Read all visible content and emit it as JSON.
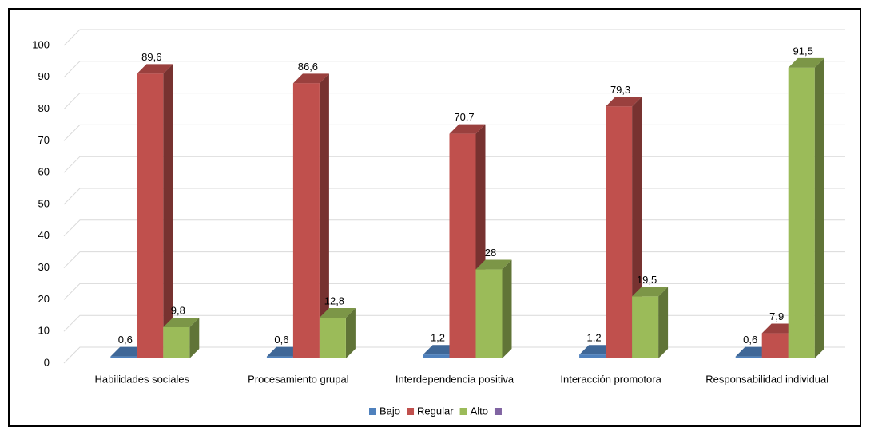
{
  "chart_data": {
    "type": "bar3d",
    "categories": [
      "Habilidades sociales",
      "Procesamiento grupal",
      "Interdependencia positiva",
      "Interacción promotora",
      "Responsabilidad individual"
    ],
    "series": [
      {
        "name": "Bajo",
        "color": "#4f81bd",
        "values": [
          0.6,
          0.6,
          1.2,
          1.2,
          0.6
        ],
        "value_labels": [
          "0,6",
          "0,6",
          "1,2",
          "1,2",
          "0,6"
        ]
      },
      {
        "name": "Regular",
        "color": "#c0504d",
        "values": [
          89.6,
          86.6,
          70.7,
          79.3,
          7.9
        ],
        "value_labels": [
          "89,6",
          "86,6",
          "70,7",
          "79,3",
          "7,9"
        ]
      },
      {
        "name": "Alto",
        "color": "#9bbb59",
        "values": [
          9.8,
          12.8,
          28,
          19.5,
          91.5
        ],
        "value_labels": [
          "9,8",
          "12,8",
          "28",
          "19,5",
          "91,5"
        ]
      },
      {
        "name": null,
        "color": "#8064a2",
        "values": [
          null,
          null,
          null,
          null,
          null
        ]
      }
    ],
    "ylim": [
      0,
      100
    ],
    "yticks": [
      0,
      10,
      20,
      30,
      40,
      50,
      60,
      70,
      80,
      90,
      100
    ],
    "grid": true,
    "legend": "bottom"
  }
}
